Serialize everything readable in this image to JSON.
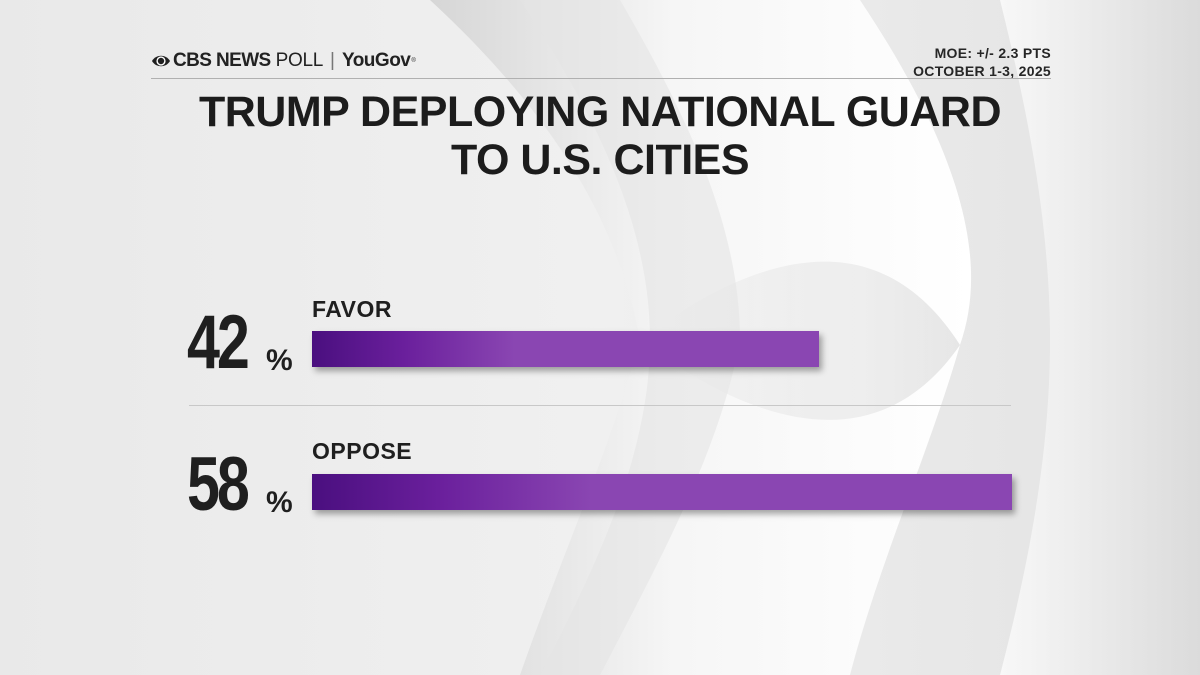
{
  "header": {
    "brand_cbs": "CBS NEWS",
    "brand_poll": "POLL",
    "brand_separator": "|",
    "brand_partner": "YouGov",
    "moe": "MOE: +/- 2.3 PTS",
    "dates": "OCTOBER 1-3, 2025"
  },
  "title": {
    "line1": "TRUMP DEPLOYING NATIONAL GUARD",
    "line2": "TO U.S. CITIES"
  },
  "colors": {
    "bar": "#8a46b2",
    "bar_dark": "#4a0f7f",
    "text": "#1f1f1f"
  },
  "chart_data": {
    "type": "bar",
    "orientation": "horizontal",
    "title": "TRUMP DEPLOYING NATIONAL GUARD TO U.S. CITIES",
    "categories": [
      "FAVOR",
      "OPPOSE"
    ],
    "values": [
      42,
      58
    ],
    "value_labels": [
      "42",
      "58"
    ],
    "unit": "%",
    "xlim": [
      0,
      58
    ],
    "grid": false,
    "legend": "none"
  }
}
